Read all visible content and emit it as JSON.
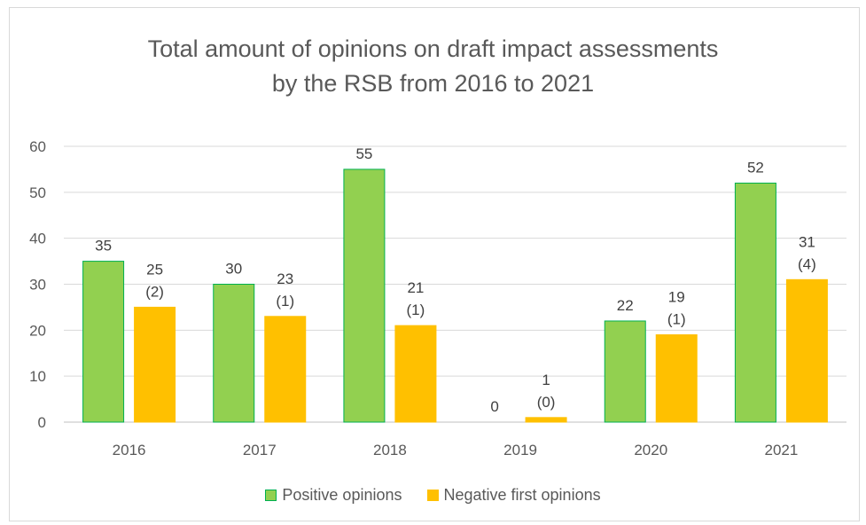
{
  "chart_data": {
    "type": "bar",
    "title": [
      "Total amount of opinions on draft impact assessments",
      "by the RSB from 2016 to 2021"
    ],
    "categories": [
      "2016",
      "2017",
      "2018",
      "2019",
      "2020",
      "2021"
    ],
    "series": [
      {
        "name": "Positive opinions",
        "values": [
          35,
          30,
          55,
          0,
          22,
          52
        ],
        "labels": [
          "35",
          "30",
          "55",
          "0",
          "22",
          "52"
        ],
        "color": "#92d050",
        "edge_color": "#00b050"
      },
      {
        "name": "Negative first opinions",
        "values": [
          25,
          23,
          21,
          1,
          19,
          31
        ],
        "labels": [
          "25\n(2)",
          "23\n(1)",
          "21\n(1)",
          "1\n(0)",
          "19\n(1)",
          "31\n(4)"
        ],
        "color": "#ffc000",
        "edge_color": "#ffc000"
      }
    ],
    "ylim": [
      0,
      60
    ],
    "yticks": [
      "0",
      "10",
      "20",
      "30",
      "40",
      "50",
      "60"
    ],
    "grid": true,
    "legend_position": "bottom"
  }
}
